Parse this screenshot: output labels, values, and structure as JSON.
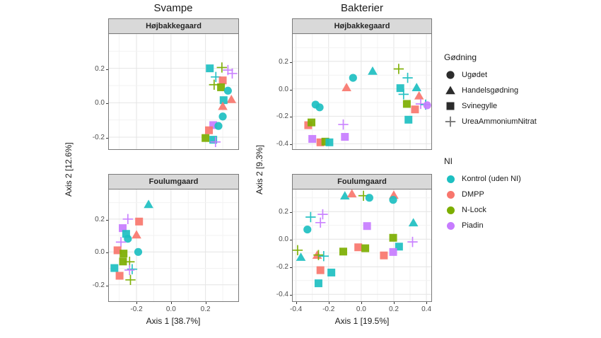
{
  "figure": {
    "column_titles": [
      "Svampe",
      "Bakterier"
    ],
    "y_axis_labels": [
      "Axis 2 [12.6%]",
      "Axis 2 [9.3%]"
    ],
    "x_axis_labels": [
      "Axis 1 [38.7%]",
      "Axis 1 [19.5%]"
    ]
  },
  "colors": {
    "kontrol": "#1DBFC1",
    "dmpp": "#F8766D",
    "nlock": "#7CAE00",
    "piadin": "#C77CFF",
    "strip_bg": "#D9D9D9",
    "panel_border": "#7A7A7A",
    "grid_major": "#E4E4E4",
    "grid_minor": "#F2F2F2",
    "tick_text": "#4D4D4D",
    "legend_glyph": "#1A1A1A",
    "legend_plus": "#666666"
  },
  "legend_shape": {
    "title": "Gødning",
    "items": [
      {
        "label": "Ugødet",
        "shape": "circle"
      },
      {
        "label": "Handelsgødning",
        "shape": "triangle"
      },
      {
        "label": "Svinegylle",
        "shape": "square"
      },
      {
        "label": "UreaAmmoniumNitrat",
        "shape": "plus"
      }
    ]
  },
  "legend_color": {
    "title": "NI",
    "items": [
      {
        "label": "Kontrol (uden NI)",
        "color_key": "kontrol"
      },
      {
        "label": "DMPP",
        "color_key": "dmpp"
      },
      {
        "label": "N-Lock",
        "color_key": "nlock"
      },
      {
        "label": "Piadin",
        "color_key": "piadin"
      }
    ]
  },
  "chart_data": {
    "type": "scatter",
    "facets": {
      "columns": [
        "Svampe",
        "Bakterier"
      ],
      "rows": [
        "Højbakkegaard",
        "Foulumgaard"
      ]
    },
    "shape_mapping": "Gødning: Ugødet=circle, Handelsgødning=triangle, Svinegylle=square, UreaAmmoniumNitrat=plus",
    "color_mapping": "NI: Kontrol (uden NI)=teal, DMPP=salmon, N-Lock=green, Piadin=purple",
    "grid": true,
    "legend_position": "right",
    "panels": [
      {
        "id": "svampe-hojbakkegaard",
        "column": "Svampe",
        "row_label": "Højbakkegaard",
        "xlim": [
          -0.36,
          0.39
        ],
        "ylim": [
          -0.27,
          0.4
        ],
        "x_ticks": [
          -0.2,
          0.0,
          0.2
        ],
        "y_ticks": [
          0.2,
          0.0,
          -0.2
        ],
        "x_labels_visible": false,
        "points": [
          [
            0.225,
            0.2,
            "square",
            "kontrol"
          ],
          [
            0.295,
            0.205,
            "plus",
            "nlock"
          ],
          [
            0.33,
            0.19,
            "plus",
            "piadin"
          ],
          [
            0.355,
            0.17,
            "plus",
            "piadin"
          ],
          [
            0.26,
            0.15,
            "plus",
            "kontrol"
          ],
          [
            0.3,
            0.13,
            "square",
            "dmpp"
          ],
          [
            0.25,
            0.105,
            "plus",
            "nlock"
          ],
          [
            0.29,
            0.09,
            "square",
            "nlock"
          ],
          [
            0.33,
            0.07,
            "circle",
            "kontrol"
          ],
          [
            0.35,
            0.02,
            "triangle",
            "dmpp"
          ],
          [
            0.305,
            0.015,
            "square",
            "kontrol"
          ],
          [
            0.3,
            -0.02,
            "triangle",
            "dmpp"
          ],
          [
            0.3,
            -0.08,
            "circle",
            "kontrol"
          ],
          [
            0.245,
            -0.13,
            "square",
            "piadin"
          ],
          [
            0.275,
            -0.135,
            "circle",
            "kontrol"
          ],
          [
            0.22,
            -0.16,
            "square",
            "dmpp"
          ],
          [
            0.2,
            -0.205,
            "square",
            "nlock"
          ],
          [
            0.245,
            -0.215,
            "square",
            "kontrol"
          ],
          [
            0.258,
            -0.228,
            "plus",
            "piadin"
          ]
        ]
      },
      {
        "id": "bakterier-hojbakkegaard",
        "column": "Bakterier",
        "row_label": "Højbakkegaard",
        "xlim": [
          -0.42,
          0.43
        ],
        "ylim": [
          -0.44,
          0.4
        ],
        "x_ticks": [
          -0.4,
          -0.2,
          0.0,
          0.2,
          0.4
        ],
        "y_ticks": [
          0.2,
          0.0,
          -0.2,
          -0.4
        ],
        "x_labels_visible": false,
        "points": [
          [
            -0.28,
            -0.115,
            "circle",
            "kontrol"
          ],
          [
            -0.255,
            -0.135,
            "circle",
            "kontrol"
          ],
          [
            -0.325,
            -0.265,
            "square",
            "dmpp"
          ],
          [
            -0.305,
            -0.245,
            "square",
            "nlock"
          ],
          [
            -0.3,
            -0.365,
            "square",
            "piadin"
          ],
          [
            -0.25,
            -0.39,
            "square",
            "dmpp"
          ],
          [
            -0.22,
            -0.385,
            "square",
            "nlock"
          ],
          [
            -0.195,
            -0.39,
            "square",
            "kontrol"
          ],
          [
            -0.11,
            -0.26,
            "plus",
            "piadin"
          ],
          [
            -0.1,
            -0.35,
            "square",
            "piadin"
          ],
          [
            -0.09,
            0.01,
            "triangle",
            "dmpp"
          ],
          [
            -0.05,
            0.08,
            "circle",
            "kontrol"
          ],
          [
            0.07,
            0.13,
            "triangle",
            "kontrol"
          ],
          [
            0.23,
            0.145,
            "plus",
            "nlock"
          ],
          [
            0.285,
            0.08,
            "plus",
            "kontrol"
          ],
          [
            0.24,
            0.005,
            "square",
            "kontrol"
          ],
          [
            0.26,
            -0.04,
            "plus",
            "kontrol"
          ],
          [
            0.34,
            0.01,
            "triangle",
            "kontrol"
          ],
          [
            0.355,
            -0.05,
            "triangle",
            "dmpp"
          ],
          [
            0.28,
            -0.11,
            "square",
            "nlock"
          ],
          [
            0.365,
            -0.11,
            "plus",
            "piadin"
          ],
          [
            0.395,
            -0.115,
            "plus",
            "kontrol"
          ],
          [
            0.33,
            -0.15,
            "square",
            "dmpp"
          ],
          [
            0.405,
            -0.12,
            "circle",
            "piadin"
          ],
          [
            0.29,
            -0.225,
            "square",
            "kontrol"
          ]
        ]
      },
      {
        "id": "svampe-foulumgaard",
        "column": "Svampe",
        "row_label": "Foulumgaard",
        "xlim": [
          -0.36,
          0.39
        ],
        "ylim": [
          -0.3,
          0.38
        ],
        "x_ticks": [
          -0.2,
          0.0,
          0.2
        ],
        "y_ticks": [
          0.2,
          0.0,
          -0.2
        ],
        "x_labels_visible": true,
        "points": [
          [
            -0.13,
            0.29,
            "triangle",
            "kontrol"
          ],
          [
            -0.25,
            0.2,
            "plus",
            "piadin"
          ],
          [
            -0.185,
            0.185,
            "square",
            "dmpp"
          ],
          [
            -0.28,
            0.145,
            "square",
            "piadin"
          ],
          [
            -0.26,
            0.11,
            "square",
            "kontrol"
          ],
          [
            -0.2,
            0.105,
            "triangle",
            "dmpp"
          ],
          [
            -0.25,
            0.08,
            "circle",
            "kontrol"
          ],
          [
            -0.29,
            0.06,
            "plus",
            "piadin"
          ],
          [
            -0.31,
            0.01,
            "square",
            "dmpp"
          ],
          [
            -0.275,
            -0.01,
            "square",
            "nlock"
          ],
          [
            -0.19,
            0.0,
            "circle",
            "kontrol"
          ],
          [
            -0.278,
            -0.058,
            "square",
            "nlock"
          ],
          [
            -0.24,
            -0.06,
            "plus",
            "nlock"
          ],
          [
            -0.328,
            -0.098,
            "square",
            "kontrol"
          ],
          [
            -0.225,
            -0.105,
            "plus",
            "kontrol"
          ],
          [
            -0.24,
            -0.11,
            "plus",
            "piadin"
          ],
          [
            -0.298,
            -0.145,
            "square",
            "dmpp"
          ],
          [
            -0.235,
            -0.17,
            "plus",
            "nlock"
          ]
        ]
      },
      {
        "id": "bakterier-foulumgaard",
        "column": "Bakterier",
        "row_label": "Foulumgaard",
        "xlim": [
          -0.42,
          0.43
        ],
        "ylim": [
          -0.45,
          0.36
        ],
        "x_ticks": [
          -0.4,
          -0.2,
          0.0,
          0.2,
          0.4
        ],
        "y_ticks": [
          0.2,
          0.0,
          -0.2,
          -0.4
        ],
        "x_labels_visible": true,
        "points": [
          [
            -0.1,
            0.315,
            "triangle",
            "kontrol"
          ],
          [
            -0.057,
            0.33,
            "triangle",
            "dmpp"
          ],
          [
            0.014,
            0.315,
            "plus",
            "nlock"
          ],
          [
            0.05,
            0.3,
            "circle",
            "kontrol"
          ],
          [
            0.2,
            0.32,
            "triangle",
            "dmpp"
          ],
          [
            0.196,
            0.285,
            "circle",
            "kontrol"
          ],
          [
            -0.31,
            0.16,
            "plus",
            "kontrol"
          ],
          [
            -0.236,
            0.18,
            "plus",
            "piadin"
          ],
          [
            -0.25,
            0.12,
            "plus",
            "piadin"
          ],
          [
            -0.33,
            0.07,
            "circle",
            "kontrol"
          ],
          [
            0.32,
            0.12,
            "triangle",
            "kontrol"
          ],
          [
            0.036,
            0.095,
            "square",
            "piadin"
          ],
          [
            0.196,
            0.01,
            "square",
            "nlock"
          ],
          [
            0.315,
            -0.02,
            "plus",
            "piadin"
          ],
          [
            0.232,
            -0.054,
            "square",
            "kontrol"
          ],
          [
            0.196,
            -0.093,
            "square",
            "piadin"
          ],
          [
            0.139,
            -0.118,
            "square",
            "dmpp"
          ],
          [
            -0.018,
            -0.059,
            "square",
            "dmpp"
          ],
          [
            0.025,
            -0.066,
            "square",
            "nlock"
          ],
          [
            -0.11,
            -0.09,
            "square",
            "nlock"
          ],
          [
            -0.39,
            -0.08,
            "plus",
            "nlock"
          ],
          [
            -0.37,
            -0.13,
            "triangle",
            "kontrol"
          ],
          [
            -0.27,
            -0.115,
            "triangle",
            "dmpp"
          ],
          [
            -0.262,
            -0.115,
            "plus",
            "nlock"
          ],
          [
            -0.23,
            -0.123,
            "plus",
            "kontrol"
          ],
          [
            -0.25,
            -0.225,
            "square",
            "dmpp"
          ],
          [
            -0.183,
            -0.242,
            "square",
            "kontrol"
          ],
          [
            -0.262,
            -0.32,
            "square",
            "kontrol"
          ]
        ]
      }
    ]
  }
}
